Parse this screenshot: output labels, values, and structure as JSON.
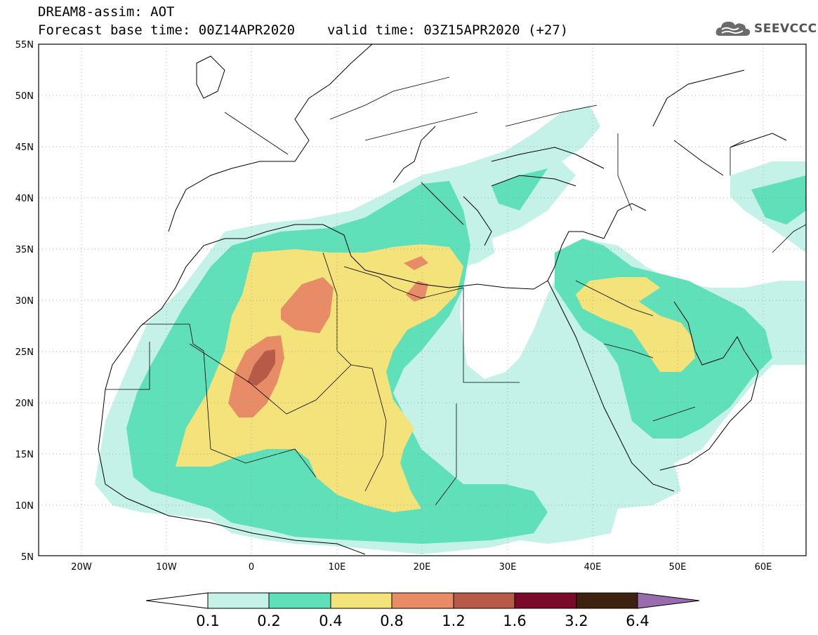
{
  "header": {
    "model_title": "DREAM8-assim: AOT",
    "base_time": "Forecast base time: 00Z14APR2020",
    "valid_time": "valid time: 03Z15APR2020 (+27)"
  },
  "logo": {
    "text": "SEEVCCC",
    "icon": "cloud-icon"
  },
  "map": {
    "lat_labels": [
      "55N",
      "50N",
      "45N",
      "40N",
      "35N",
      "30N",
      "25N",
      "20N",
      "15N",
      "10N",
      "5N"
    ],
    "lon_labels": [
      "20W",
      "10W",
      "0",
      "10E",
      "20E",
      "30E",
      "40E",
      "50E",
      "60E"
    ],
    "lon_range": [
      -25,
      65
    ],
    "lat_range": [
      5,
      55
    ]
  },
  "legend": {
    "ticks": [
      "0.1",
      "0.2",
      "0.4",
      "0.8",
      "1.2",
      "1.6",
      "3.2",
      "6.4"
    ],
    "colors": [
      "#ffffff",
      "#c4f2e8",
      "#5fe0b8",
      "#f4e37a",
      "#e88c68",
      "#b85a48",
      "#7a0a2a",
      "#3e2210",
      "#9b6bb0"
    ]
  },
  "fields": {
    "level_colors": {
      "l1": "#c4f2e8",
      "l2": "#5fe0b8",
      "l3": "#f4e37a",
      "l4": "#e88c68",
      "l5": "#b85a48"
    }
  }
}
